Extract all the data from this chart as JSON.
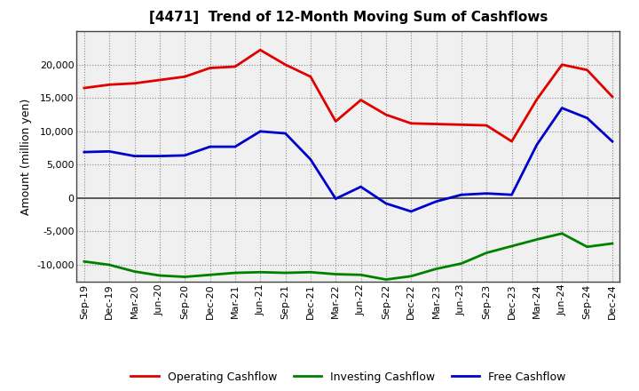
{
  "title": "[4471]  Trend of 12-Month Moving Sum of Cashflows",
  "ylabel": "Amount (million yen)",
  "x_labels": [
    "Sep-19",
    "Dec-19",
    "Mar-20",
    "Jun-20",
    "Sep-20",
    "Dec-20",
    "Mar-21",
    "Jun-21",
    "Sep-21",
    "Dec-21",
    "Mar-22",
    "Jun-22",
    "Sep-22",
    "Dec-22",
    "Mar-23",
    "Jun-23",
    "Sep-23",
    "Dec-23",
    "Mar-24",
    "Jun-24",
    "Sep-24",
    "Dec-24"
  ],
  "operating": [
    16500,
    17000,
    17200,
    17700,
    18200,
    19500,
    19700,
    22200,
    20000,
    18200,
    11500,
    14700,
    12500,
    11200,
    11100,
    11000,
    10900,
    8500,
    14800,
    20000,
    19200,
    15200
  ],
  "investing": [
    -9500,
    -10000,
    -11000,
    -11600,
    -11800,
    -11500,
    -11200,
    -11100,
    -11200,
    -11100,
    -11400,
    -11500,
    -12200,
    -11700,
    -10600,
    -9800,
    -8200,
    -7200,
    -6200,
    -5300,
    -7300,
    -6800
  ],
  "free": [
    6900,
    7000,
    6300,
    6300,
    6400,
    7700,
    7700,
    10000,
    9700,
    5800,
    -100,
    1700,
    -800,
    -2000,
    -500,
    500,
    700,
    500,
    8000,
    13500,
    12000,
    8500
  ],
  "operating_color": "#e00000",
  "investing_color": "#008000",
  "free_color": "#0000cc",
  "bg_color": "#ffffff",
  "plot_bg_color": "#f0f0f0",
  "grid_color": "#888888",
  "ylim": [
    -12500,
    25000
  ],
  "yticks": [
    -10000,
    -5000,
    0,
    5000,
    10000,
    15000,
    20000
  ],
  "legend_labels": [
    "Operating Cashflow",
    "Investing Cashflow",
    "Free Cashflow"
  ],
  "title_fontsize": 11,
  "ylabel_fontsize": 9,
  "tick_fontsize": 8,
  "legend_fontsize": 9,
  "linewidth": 2.0
}
